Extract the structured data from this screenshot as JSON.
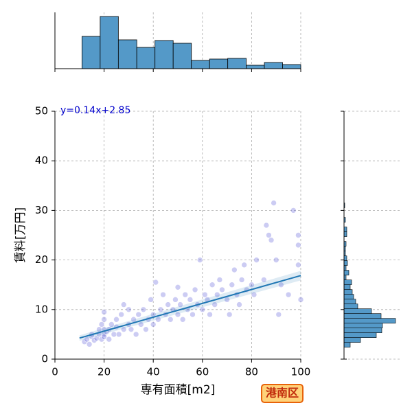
{
  "badge": "港南区",
  "chart_data": [
    {
      "type": "scatter",
      "xlabel": "専有面積[m2]",
      "ylabel": "賃料[万円]",
      "xlim": [
        0,
        100
      ],
      "ylim": [
        0,
        50
      ],
      "xticks": [
        0,
        20,
        40,
        60,
        80,
        100
      ],
      "yticks": [
        0,
        10,
        20,
        30,
        40,
        50
      ],
      "grid": true,
      "color": "#5555d8",
      "x": [
        12,
        13,
        14,
        15,
        15,
        16,
        17,
        18,
        18,
        19,
        19,
        20,
        20,
        20,
        20,
        20,
        21,
        22,
        22,
        23,
        24,
        25,
        25,
        26,
        27,
        28,
        28,
        30,
        30,
        31,
        32,
        33,
        34,
        35,
        36,
        37,
        38,
        39,
        40,
        40,
        41,
        42,
        43,
        44,
        45,
        46,
        47,
        48,
        49,
        50,
        50,
        51,
        52,
        53,
        54,
        55,
        56,
        57,
        58,
        59,
        60,
        61,
        62,
        63,
        64,
        65,
        66,
        67,
        68,
        70,
        71,
        72,
        73,
        74,
        75,
        76,
        77,
        78,
        80,
        81,
        82,
        85,
        86,
        87,
        88,
        89,
        90,
        91,
        92,
        95,
        99,
        99,
        99,
        100,
        97
      ],
      "y": [
        3.5,
        4,
        3,
        4.5,
        5,
        3.8,
        4.2,
        5,
        6,
        4,
        7,
        5,
        6,
        8,
        9.5,
        4.5,
        5.5,
        6,
        4,
        7,
        5,
        6.5,
        8,
        5,
        9,
        6,
        11,
        7,
        10,
        6,
        8,
        5,
        9,
        7,
        10,
        6,
        8,
        12,
        9,
        7,
        15.5,
        8,
        10,
        13,
        9,
        11,
        8,
        10,
        12,
        9,
        14.5,
        11,
        8,
        13,
        10,
        12,
        9,
        14,
        11,
        20,
        10,
        13,
        12,
        9,
        15,
        11,
        13,
        16,
        14,
        12,
        9,
        15,
        18,
        13,
        11,
        16,
        19,
        14,
        15,
        13,
        20,
        16,
        27,
        25,
        24,
        31.5,
        20,
        9,
        15,
        13,
        25,
        23,
        19,
        12,
        30
      ],
      "regression": {
        "label": "y=0.14x+2.85",
        "slope": 0.14,
        "intercept": 2.85,
        "x_range": [
          10,
          100
        ],
        "color": "#1f77b4"
      }
    },
    {
      "type": "histogram",
      "orientation": "vertical",
      "color": "#5499c8",
      "bins": [
        11,
        18.4,
        25.8,
        33.3,
        40.7,
        48.1,
        55.5,
        62.9,
        70.3,
        77.8,
        85.2,
        92.6,
        100
      ],
      "counts": [
        47,
        76,
        42,
        31,
        41,
        37,
        12,
        14,
        15,
        5,
        9,
        6
      ],
      "xlim": [
        0,
        100
      ],
      "xticks": [
        0,
        20,
        40,
        60,
        80,
        100
      ],
      "ylim": [
        0,
        80
      ],
      "grid": true
    },
    {
      "type": "histogram",
      "orientation": "horizontal",
      "color": "#5499c8",
      "bins": [
        2.4,
        3.37,
        4.34,
        5.31,
        6.28,
        7.25,
        8.22,
        9.19,
        10.16,
        11.13,
        12.1,
        13.07,
        14.04,
        15.01,
        15.98,
        16.95,
        17.92,
        18.89,
        19.86,
        20.83,
        21.8,
        22.77,
        23.74,
        24.71,
        25.68,
        26.65,
        27.62,
        28.59,
        29.56,
        30.53,
        31.5
      ],
      "counts": [
        9,
        24,
        47,
        55,
        56,
        75,
        54,
        40,
        20,
        17,
        14,
        12,
        9,
        11,
        3,
        7,
        3,
        5,
        4,
        2,
        2,
        3,
        0,
        4,
        4,
        0,
        2,
        0,
        0,
        1
      ],
      "ylim": [
        0,
        50
      ],
      "yticks": [
        0,
        10,
        20,
        30,
        40,
        50
      ],
      "xlim": [
        0,
        80
      ],
      "grid": true
    }
  ]
}
